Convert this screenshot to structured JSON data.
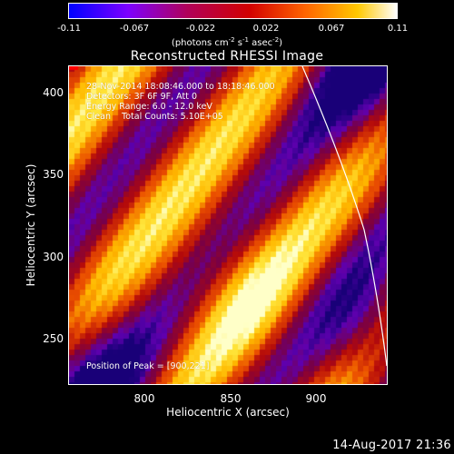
{
  "colorbar": {
    "colors": [
      "#0000ff",
      "#7d00ff",
      "#b0005a",
      "#d20000",
      "#ff6400",
      "#ffc800",
      "#ffffff"
    ],
    "ticks": [
      "-0.11",
      "-0.067",
      "-0.022",
      "0.022",
      "0.067",
      "0.11"
    ],
    "units_label": "(photons cm",
    "units_exp1": "-2",
    "units_mid": " s",
    "units_exp2": "-1",
    "units_mid2": " asec",
    "units_exp3": "-2",
    "units_close": ")"
  },
  "plot": {
    "title": "Reconstructed RHESSI Image",
    "info_lines": {
      "time": "28-Nov-2014 18:08:46.000 to 18:18:46.000",
      "detectors": "Detectors: 3F 6F 9F, Att 0",
      "energy": "Energy Range: 6.0 - 12.0 keV",
      "clean": "Clean    Total Counts: 5.10E+05"
    },
    "peak_text": "Position of Peak = [900,221]",
    "x_ticks": [
      "800",
      "850",
      "900"
    ],
    "y_ticks": [
      "400",
      "350",
      "300",
      "250"
    ],
    "xlabel": "Heliocentric X (arcsec)",
    "ylabel": "Heliocentric Y (arcsec)"
  },
  "timestamp": "14-Aug-2017 21:36"
}
